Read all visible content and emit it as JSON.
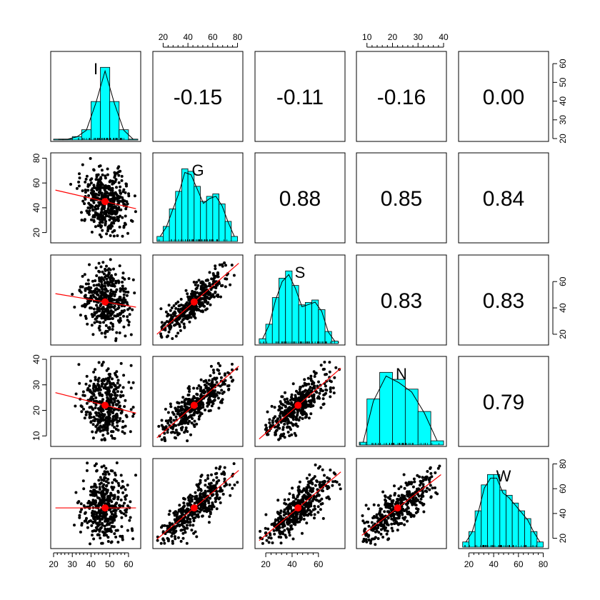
{
  "chart_data": {
    "type": "scatter",
    "layout": "pairs-panels matrix",
    "variables": [
      "I",
      "G",
      "S",
      "N",
      "W"
    ],
    "var_ranges": {
      "I": [
        20,
        65
      ],
      "G": [
        14,
        82
      ],
      "S": [
        14,
        78
      ],
      "N": [
        7,
        40
      ],
      "W": [
        14,
        82
      ]
    },
    "means": {
      "I": 47.5,
      "G": 45.0,
      "S": 44.5,
      "N": 22.0,
      "W": 44.5
    },
    "ticks": {
      "I": [
        "20",
        "30",
        "40",
        "50",
        "60"
      ],
      "G_top": [
        "20",
        "40",
        "60",
        "80"
      ],
      "G_left": [
        "20",
        "40",
        "60",
        "80"
      ],
      "S_bottom": [
        "20",
        "40",
        "60"
      ],
      "S_right": [
        "20",
        "40",
        "60"
      ],
      "N_top": [
        "10",
        "20",
        "30",
        "40"
      ],
      "N_left": [
        "10",
        "20",
        "30",
        "40"
      ],
      "I_right": [
        "20",
        "30",
        "40",
        "50",
        "60"
      ],
      "W_bottom": [
        "20",
        "40",
        "60",
        "80"
      ],
      "W_right": [
        "20",
        "40",
        "60",
        "80"
      ]
    },
    "correlations": [
      {
        "row": 0,
        "col": 1,
        "value": "-0.15"
      },
      {
        "row": 0,
        "col": 2,
        "value": "-0.11"
      },
      {
        "row": 0,
        "col": 3,
        "value": "-0.16"
      },
      {
        "row": 0,
        "col": 4,
        "value": "0.00"
      },
      {
        "row": 1,
        "col": 2,
        "value": "0.88"
      },
      {
        "row": 1,
        "col": 3,
        "value": "0.85"
      },
      {
        "row": 1,
        "col": 4,
        "value": "0.84"
      },
      {
        "row": 2,
        "col": 3,
        "value": "0.83"
      },
      {
        "row": 2,
        "col": 4,
        "value": "0.83"
      },
      {
        "row": 3,
        "col": 4,
        "value": "0.79"
      }
    ],
    "histograms": {
      "I": {
        "breaks": [
          20,
          25,
          30,
          35,
          40,
          45,
          50,
          55,
          60,
          65
        ],
        "density": [
          0.001,
          0.001,
          0.004,
          0.012,
          0.045,
          0.085,
          0.045,
          0.012,
          0.001
        ]
      },
      "G": {
        "breaks": [
          15,
          20,
          25,
          30,
          35,
          40,
          45,
          50,
          55,
          60,
          65,
          70,
          75,
          80
        ],
        "density": [
          0.002,
          0.006,
          0.013,
          0.02,
          0.029,
          0.028,
          0.022,
          0.016,
          0.018,
          0.019,
          0.015,
          0.008,
          0.002
        ]
      },
      "S": {
        "breaks": [
          15,
          20,
          25,
          30,
          35,
          40,
          45,
          50,
          55,
          60,
          65,
          70,
          75
        ],
        "density": [
          0.002,
          0.008,
          0.019,
          0.027,
          0.03,
          0.024,
          0.016,
          0.017,
          0.018,
          0.014,
          0.005,
          0.001
        ]
      },
      "N": {
        "breaks": [
          7,
          10,
          15,
          20,
          25,
          30,
          35,
          40
        ],
        "density": [
          0.002,
          0.033,
          0.052,
          0.047,
          0.04,
          0.024,
          0.003
        ]
      },
      "W": {
        "breaks": [
          15,
          20,
          25,
          30,
          35,
          40,
          45,
          50,
          55,
          60,
          65,
          70,
          75,
          80
        ],
        "density": [
          0.002,
          0.006,
          0.014,
          0.024,
          0.028,
          0.028,
          0.022,
          0.02,
          0.017,
          0.014,
          0.011,
          0.006,
          0.002
        ]
      }
    },
    "colors": {
      "hist_fill": "#00FFFF",
      "points": "#000000",
      "smooth_line": "#FF0000",
      "mean_point": "#FF0000",
      "density_line": "#000000"
    }
  }
}
